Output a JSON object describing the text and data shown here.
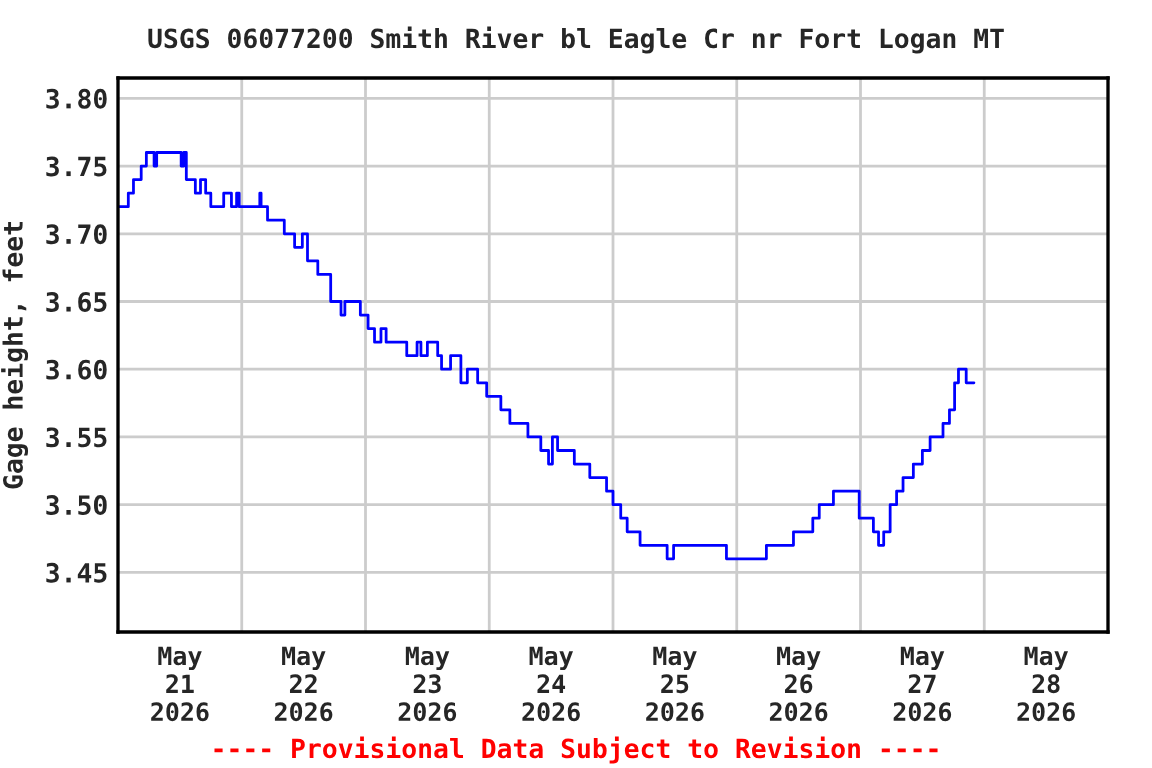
{
  "chart_data": {
    "type": "step",
    "title": "USGS 06077200 Smith River bl Eagle Cr nr Fort Logan MT",
    "ylabel": "Gage height, feet",
    "annotations": [
      "---- Provisional Data Subject to Revision ----"
    ],
    "x": [
      "2026-05-21T00:00",
      "2026-05-21T02:00",
      "2026-05-21T03:00",
      "2026-05-21T04:30",
      "2026-05-21T05:30",
      "2026-05-21T07:00",
      "2026-05-21T07:30",
      "2026-05-21T11:30",
      "2026-05-21T12:15",
      "2026-05-21T12:45",
      "2026-05-21T13:15",
      "2026-05-21T15:00",
      "2026-05-21T16:00",
      "2026-05-21T17:00",
      "2026-05-21T18:00",
      "2026-05-21T20:30",
      "2026-05-21T22:00",
      "2026-05-21T23:00",
      "2026-05-21T23:30",
      "2026-05-22T03:30",
      "2026-05-22T03:45",
      "2026-05-22T05:00",
      "2026-05-22T08:15",
      "2026-05-22T10:15",
      "2026-05-22T11:45",
      "2026-05-22T12:45",
      "2026-05-22T14:45",
      "2026-05-22T17:15",
      "2026-05-22T19:15",
      "2026-05-22T20:00",
      "2026-05-22T23:00",
      "2026-05-23T00:30",
      "2026-05-23T01:45",
      "2026-05-23T03:00",
      "2026-05-23T04:00",
      "2026-05-23T08:00",
      "2026-05-23T10:00",
      "2026-05-23T10:45",
      "2026-05-23T12:00",
      "2026-05-23T14:00",
      "2026-05-23T14:45",
      "2026-05-23T16:30",
      "2026-05-23T18:30",
      "2026-05-23T19:45",
      "2026-05-23T21:45",
      "2026-05-23T23:30",
      "2026-05-24T02:15",
      "2026-05-24T04:00",
      "2026-05-24T07:30",
      "2026-05-24T10:00",
      "2026-05-24T11:30",
      "2026-05-24T12:15",
      "2026-05-24T13:15",
      "2026-05-24T16:30",
      "2026-05-24T19:30",
      "2026-05-24T21:30",
      "2026-05-24T22:45",
      "2026-05-25T00:00",
      "2026-05-25T01:30",
      "2026-05-25T02:45",
      "2026-05-25T05:15",
      "2026-05-25T10:30",
      "2026-05-25T11:45",
      "2026-05-25T21:30",
      "2026-05-25T22:00",
      "2026-05-26T05:15",
      "2026-05-26T05:45",
      "2026-05-26T09:45",
      "2026-05-26T11:00",
      "2026-05-26T14:15",
      "2026-05-26T14:45",
      "2026-05-26T16:00",
      "2026-05-26T18:45",
      "2026-05-26T23:15",
      "2026-05-26T23:45",
      "2026-05-27T01:45",
      "2026-05-27T02:30",
      "2026-05-27T03:30",
      "2026-05-27T04:30",
      "2026-05-27T05:45",
      "2026-05-27T07:00",
      "2026-05-27T08:15",
      "2026-05-27T10:15",
      "2026-05-27T12:00",
      "2026-05-27T13:30",
      "2026-05-27T16:00",
      "2026-05-27T17:15",
      "2026-05-27T18:15",
      "2026-05-27T19:00",
      "2026-05-27T20:00",
      "2026-05-27T20:30",
      "2026-05-27T22:00"
    ],
    "series": [
      {
        "color": "#0000ff",
        "values": [
          3.72,
          3.73,
          3.74,
          3.75,
          3.76,
          3.75,
          3.76,
          3.76,
          3.75,
          3.76,
          3.74,
          3.73,
          3.74,
          3.73,
          3.72,
          3.73,
          3.72,
          3.73,
          3.72,
          3.73,
          3.72,
          3.71,
          3.7,
          3.69,
          3.7,
          3.68,
          3.67,
          3.65,
          3.64,
          3.65,
          3.64,
          3.63,
          3.62,
          3.63,
          3.62,
          3.61,
          3.62,
          3.61,
          3.62,
          3.61,
          3.6,
          3.61,
          3.59,
          3.6,
          3.59,
          3.58,
          3.57,
          3.56,
          3.55,
          3.54,
          3.53,
          3.55,
          3.54,
          3.53,
          3.52,
          3.52,
          3.51,
          3.5,
          3.49,
          3.48,
          3.47,
          3.46,
          3.47,
          3.47,
          3.46,
          3.46,
          3.47,
          3.47,
          3.48,
          3.48,
          3.49,
          3.5,
          3.51,
          3.51,
          3.49,
          3.49,
          3.48,
          3.47,
          3.48,
          3.5,
          3.51,
          3.52,
          3.53,
          3.54,
          3.55,
          3.56,
          3.57,
          3.59,
          3.6,
          3.6,
          3.59,
          3.59
        ]
      }
    ],
    "xlim": [
      "2026-05-21T00:00",
      "2026-05-29T00:00"
    ],
    "xticks": [
      {
        "value": "2026-05-21T12:00",
        "label": "May\n21\n2026"
      },
      {
        "value": "2026-05-22T00:00",
        "label": null
      },
      {
        "value": "2026-05-22T12:00",
        "label": "May\n22\n2026"
      },
      {
        "value": "2026-05-23T00:00",
        "label": null
      },
      {
        "value": "2026-05-23T12:00",
        "label": "May\n23\n2026"
      },
      {
        "value": "2026-05-24T00:00",
        "label": null
      },
      {
        "value": "2026-05-24T12:00",
        "label": "May\n24\n2026"
      },
      {
        "value": "2026-05-25T00:00",
        "label": null
      },
      {
        "value": "2026-05-25T12:00",
        "label": "May\n25\n2026"
      },
      {
        "value": "2026-05-26T00:00",
        "label": null
      },
      {
        "value": "2026-05-26T12:00",
        "label": "May\n26\n2026"
      },
      {
        "value": "2026-05-27T00:00",
        "label": null
      },
      {
        "value": "2026-05-27T12:00",
        "label": "May\n27\n2026"
      },
      {
        "value": "2026-05-28T00:00",
        "label": null
      },
      {
        "value": "2026-05-28T12:00",
        "label": "May\n28\n2026"
      }
    ],
    "ylim": [
      3.406,
      3.815
    ],
    "yticks": [
      {
        "value": 3.45,
        "label": "3.45"
      },
      {
        "value": 3.5,
        "label": "3.50"
      },
      {
        "value": 3.55,
        "label": "3.55"
      },
      {
        "value": 3.6,
        "label": "3.60"
      },
      {
        "value": 3.65,
        "label": "3.65"
      },
      {
        "value": 3.7,
        "label": "3.70"
      },
      {
        "value": 3.75,
        "label": "3.75"
      },
      {
        "value": 3.8,
        "label": "3.80"
      }
    ],
    "grid": true
  }
}
